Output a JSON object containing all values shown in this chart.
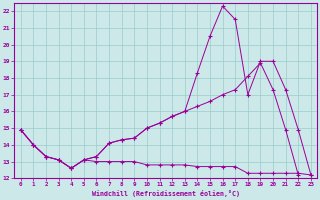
{
  "background_color": "#cce8e8",
  "line_color": "#990099",
  "grid_color": "#99cccc",
  "xlabel": "Windchill (Refroidissement éolien,°C)",
  "xlabel_color": "#990099",
  "tick_color": "#990099",
  "xmin": -0.5,
  "xmax": 23.5,
  "ymin": 12,
  "ymax": 22.5,
  "yticks": [
    12,
    13,
    14,
    15,
    16,
    17,
    18,
    19,
    20,
    21,
    22
  ],
  "xticks": [
    0,
    1,
    2,
    3,
    4,
    5,
    6,
    7,
    8,
    9,
    10,
    11,
    12,
    13,
    14,
    15,
    16,
    17,
    18,
    19,
    20,
    21,
    22,
    23
  ],
  "line1_y": [
    14.9,
    14.0,
    13.3,
    13.1,
    12.6,
    13.1,
    13.0,
    13.0,
    13.0,
    13.0,
    12.8,
    12.8,
    12.8,
    12.8,
    12.7,
    12.7,
    12.7,
    12.7,
    12.3,
    12.3,
    12.3,
    12.3,
    12.3,
    12.2
  ],
  "line2_y": [
    14.9,
    14.0,
    13.3,
    13.1,
    12.6,
    13.1,
    13.3,
    14.1,
    14.3,
    14.4,
    15.0,
    15.3,
    15.7,
    16.0,
    16.3,
    16.6,
    17.0,
    17.3,
    18.1,
    18.9,
    17.3,
    14.9,
    12.2,
    null
  ],
  "line3_y": [
    14.9,
    14.0,
    13.3,
    13.1,
    12.6,
    13.1,
    13.3,
    14.1,
    14.3,
    14.4,
    15.0,
    15.3,
    15.7,
    16.0,
    18.3,
    20.5,
    22.3,
    21.5,
    17.0,
    19.0,
    19.0,
    17.3,
    14.9,
    12.2
  ],
  "figwidth": 3.2,
  "figheight": 2.0,
  "dpi": 100
}
